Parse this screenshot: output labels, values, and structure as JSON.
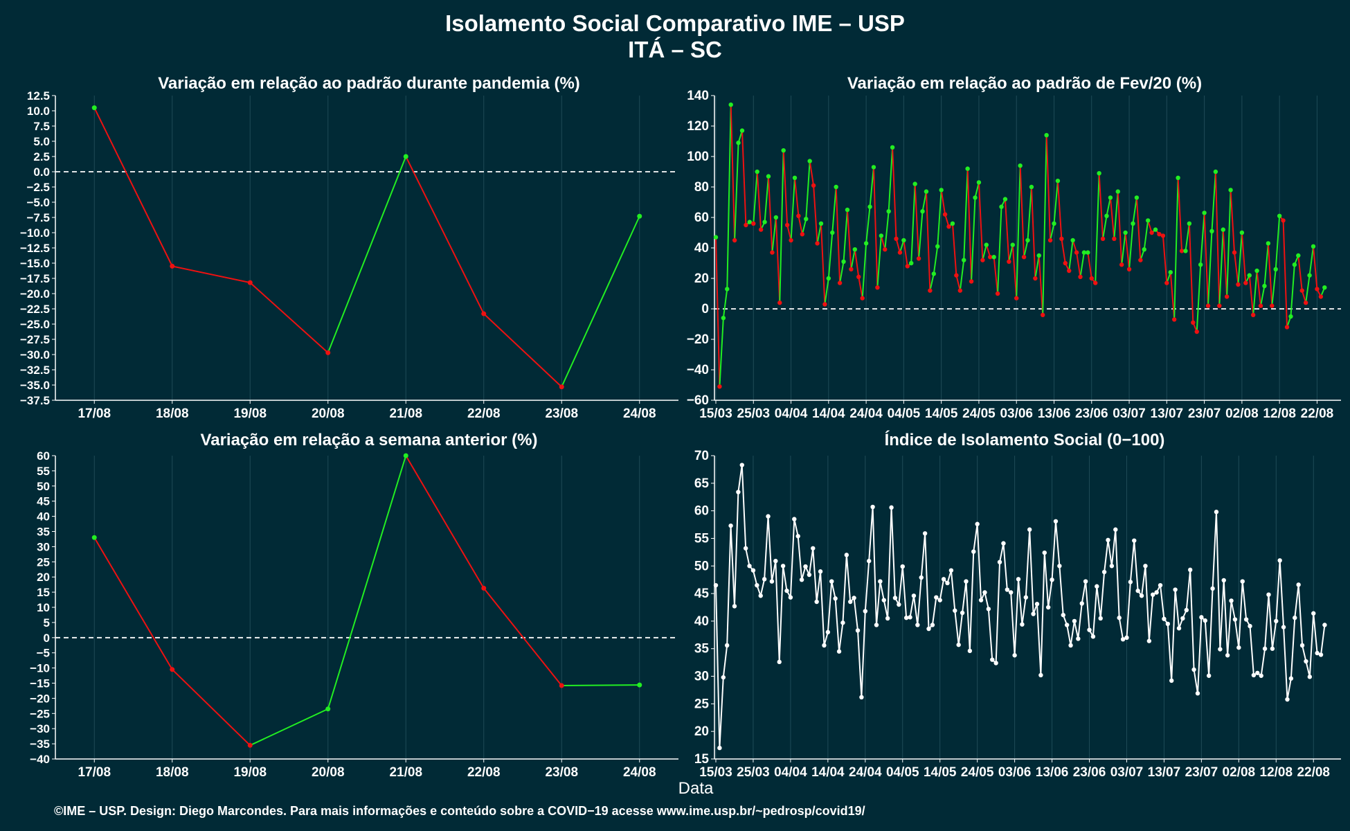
{
  "figure": {
    "title_line1": "Isolamento Social Comparativo IME – USP",
    "title_line2": "ITÁ – SC",
    "xlabel": "Data",
    "footer": "©IME – USP. Design: Diego Marcondes. Para mais informações e conteúdo sobre a COVID−19 acesse www.ime.usp.br/~pedrosp/covid19/"
  },
  "colors": {
    "background": "#012a36",
    "grid": "#1f4b57",
    "positive": "#22ee22",
    "negative": "#ee1111",
    "index_line": "#ffffff",
    "text": "#ffffff"
  },
  "chart_data": [
    {
      "id": "pandemia",
      "type": "line",
      "title": "Variação em relação ao padrão durante pandemia (%)",
      "categories": [
        "17/08",
        "18/08",
        "19/08",
        "20/08",
        "21/08",
        "22/08",
        "23/08",
        "24/08"
      ],
      "values": [
        10.5,
        -15.5,
        -18.2,
        -29.7,
        2.5,
        -23.3,
        -35.3,
        -7.3
      ],
      "ylim": [
        -37.5,
        12.5
      ],
      "yticks": [
        12.5,
        10.0,
        7.5,
        5.0,
        2.5,
        0.0,
        -2.5,
        -5.0,
        -7.5,
        -10.0,
        -12.5,
        -15.0,
        -17.5,
        -20.0,
        -22.5,
        -25.0,
        -27.5,
        -30.0,
        -32.5,
        -35.0,
        -37.5
      ],
      "ytick_labels": [
        "12.5",
        "10.0",
        "7.5",
        "5.0",
        "2.5",
        "0.0",
        "−2.5",
        "−5.0",
        "−7.5",
        "−10.0",
        "−12.5",
        "−15.0",
        "−17.5",
        "−20.0",
        "−22.5",
        "−25.0",
        "−27.5",
        "−30.0",
        "−32.5",
        "−35.0",
        "−37.5"
      ],
      "zero_line": true,
      "colored_by_change": true
    },
    {
      "id": "fev20",
      "type": "line",
      "title": "Variação em relação ao padrão de Fev/20 (%)",
      "x_start": "15/03",
      "xtick_labels": [
        "15/03",
        "25/03",
        "04/04",
        "14/04",
        "24/04",
        "04/05",
        "14/05",
        "24/05",
        "03/06",
        "13/06",
        "23/06",
        "03/07",
        "13/07",
        "23/07",
        "02/08",
        "12/08",
        "22/08"
      ],
      "xtick_step_days": 10,
      "values": [
        47,
        -51,
        -6,
        13,
        134,
        45,
        109,
        117,
        55,
        57,
        56,
        90,
        52,
        57,
        87,
        37,
        60,
        4,
        104,
        55,
        45,
        86,
        61,
        49,
        59,
        97,
        81,
        43,
        56,
        3,
        20,
        50,
        80,
        17,
        31,
        65,
        26,
        39,
        21,
        7,
        43,
        67,
        93,
        14,
        48,
        39,
        64,
        106,
        46,
        37,
        45,
        28,
        30,
        82,
        33,
        64,
        77,
        12,
        23,
        41,
        78,
        62,
        54,
        56,
        22,
        12,
        32,
        92,
        18,
        73,
        83,
        32,
        42,
        34,
        34,
        10,
        67,
        72,
        31,
        42,
        7,
        94,
        34,
        45,
        80,
        20,
        35,
        -4,
        114,
        45,
        56,
        84,
        46,
        30,
        25,
        45,
        37,
        21,
        37,
        37,
        20,
        17,
        89,
        46,
        61,
        73,
        46,
        77,
        29,
        50,
        26,
        56,
        73,
        32,
        39,
        58,
        50,
        52,
        49,
        48,
        17,
        24,
        -7,
        86,
        38,
        38,
        56,
        -9,
        -15,
        29,
        63,
        2,
        51,
        90,
        2,
        52,
        8,
        78,
        37,
        16,
        50,
        17,
        22,
        -4,
        25,
        2,
        15,
        43,
        2,
        26,
        61,
        58,
        -12,
        -5,
        29,
        35,
        12,
        4,
        22,
        41,
        13,
        8,
        14
      ],
      "ylim": [
        -60,
        140
      ],
      "yticks": [
        140,
        120,
        100,
        80,
        60,
        40,
        20,
        0,
        -20,
        -40,
        -60
      ],
      "ytick_labels": [
        "140",
        "120",
        "100",
        "80",
        "60",
        "40",
        "20",
        "0",
        "−20",
        "−40",
        "−60"
      ],
      "zero_line": true,
      "colored_by_change": true
    },
    {
      "id": "semana",
      "type": "line",
      "title": "Variação em relação a semana anterior (%)",
      "categories": [
        "17/08",
        "18/08",
        "19/08",
        "20/08",
        "21/08",
        "22/08",
        "23/08",
        "24/08"
      ],
      "values": [
        33,
        -10.5,
        -35.5,
        -23.5,
        60,
        16.3,
        -15.8,
        -15.6
      ],
      "ylim": [
        -40,
        60
      ],
      "yticks": [
        60,
        55,
        50,
        45,
        40,
        35,
        30,
        25,
        20,
        15,
        10,
        5,
        0,
        -5,
        -10,
        -15,
        -20,
        -25,
        -30,
        -35,
        -40
      ],
      "ytick_labels": [
        "60",
        "55",
        "50",
        "45",
        "40",
        "35",
        "30",
        "25",
        "20",
        "15",
        "10",
        "5",
        "0",
        "−5",
        "−10",
        "−15",
        "−20",
        "−25",
        "−30",
        "−35",
        "−40"
      ],
      "zero_line": true,
      "colored_by_change": true
    },
    {
      "id": "indice",
      "type": "line",
      "title": "Índice de Isolamento Social (0−100)",
      "x_start": "15/03",
      "xtick_labels": [
        "15/03",
        "25/03",
        "04/04",
        "14/04",
        "24/04",
        "04/05",
        "14/05",
        "24/05",
        "03/06",
        "13/06",
        "23/06",
        "03/07",
        "13/07",
        "23/07",
        "02/08",
        "12/08",
        "22/08"
      ],
      "xtick_step_days": 10,
      "values": [
        46.5,
        17,
        29.8,
        35.6,
        57.3,
        42.7,
        63.4,
        68.3,
        53.2,
        50,
        49.2,
        46.5,
        44.6,
        47.6,
        59,
        47.2,
        50.9,
        32.6,
        50,
        45.5,
        44.3,
        58.5,
        55.4,
        47.5,
        49.9,
        48.4,
        53.2,
        43.5,
        49,
        35.6,
        38,
        47.2,
        44.1,
        34.5,
        39.7,
        52,
        43.5,
        44.2,
        38.3,
        26.2,
        41.8,
        50.9,
        60.7,
        39.3,
        47.2,
        43.8,
        40.5,
        60.6,
        44.2,
        43,
        49.9,
        40.6,
        40.7,
        44.6,
        39.3,
        47.9,
        55.9,
        38.6,
        39.3,
        44.3,
        43.8,
        47.6,
        46.9,
        49.2,
        41.9,
        35.7,
        41.5,
        47.2,
        34.6,
        52.6,
        57.6,
        43.8,
        45.2,
        42.2,
        33,
        32.4,
        50.7,
        54.1,
        45.7,
        45.2,
        33.8,
        47.6,
        39.4,
        44.3,
        56.6,
        41.3,
        43.1,
        30.2,
        52.4,
        42.5,
        47.5,
        58.1,
        50,
        41.1,
        39.3,
        35.6,
        40,
        36.8,
        43.2,
        47.2,
        38.4,
        37.2,
        46.3,
        40.5,
        48.9,
        54.7,
        50,
        56.6,
        40.6,
        36.7,
        37,
        47.1,
        54.6,
        45.5,
        44.6,
        50,
        36.4,
        44.8,
        45.2,
        46.5,
        40.4,
        39.5,
        29.2,
        45.7,
        38.7,
        40.5,
        42,
        49.3,
        31.2,
        26.9,
        40.7,
        40.1,
        30.1,
        45.9,
        59.8,
        34.9,
        47.4,
        33.8,
        43.7,
        40.3,
        35.2,
        47.2,
        40.3,
        39.1,
        30.2,
        30.6,
        30.1,
        35,
        44.8,
        35,
        40,
        51,
        38.9,
        25.8,
        29.6,
        40.6,
        46.6,
        35.6,
        32.7,
        29.9,
        41.4,
        34.2,
        33.9,
        39.3
      ],
      "ylim": [
        15,
        70
      ],
      "yticks": [
        70,
        65,
        60,
        55,
        50,
        45,
        40,
        35,
        30,
        25,
        20,
        15
      ],
      "ytick_labels": [
        "70",
        "65",
        "60",
        "55",
        "50",
        "45",
        "40",
        "35",
        "30",
        "25",
        "20",
        "15"
      ],
      "zero_line": false,
      "colored_by_change": false
    }
  ]
}
